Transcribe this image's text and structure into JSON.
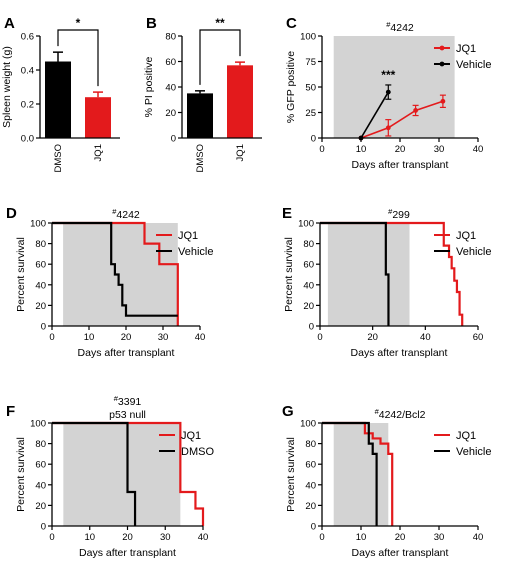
{
  "colors": {
    "jq1": "#e31a1c",
    "control": "#000000",
    "shade": "#d3d3d3"
  },
  "chart_data": [
    {
      "id": "A",
      "panel_label": "A",
      "type": "bar",
      "categories": [
        "DMSO",
        "JQ1"
      ],
      "values": [
        0.45,
        0.24
      ],
      "errors": [
        0.055,
        0.03
      ],
      "bar_colors": [
        "#000000",
        "#e31a1c"
      ],
      "ylabel": "Spleen weight (g)",
      "ylim": [
        0,
        0.6
      ],
      "yticks": [
        0.0,
        0.2,
        0.4,
        0.6
      ],
      "ytick_labels": [
        "0.0",
        "0.2",
        "0.4",
        "0.6"
      ],
      "significance": "*"
    },
    {
      "id": "B",
      "panel_label": "B",
      "type": "bar",
      "categories": [
        "DMSO",
        "JQ1"
      ],
      "values": [
        35,
        57
      ],
      "errors": [
        2,
        2.5
      ],
      "bar_colors": [
        "#000000",
        "#e31a1c"
      ],
      "ylabel": "% PI positive",
      "ylim": [
        0,
        80
      ],
      "yticks": [
        0,
        20,
        40,
        60,
        80
      ],
      "ytick_labels": [
        "0",
        "20",
        "40",
        "60",
        "80"
      ],
      "significance": "**"
    },
    {
      "id": "C",
      "panel_label": "C",
      "type": "line",
      "title_sup": "#",
      "title": "4242",
      "xlabel": "Days after transplant",
      "ylabel": "% GFP positive",
      "xlim": [
        0,
        40
      ],
      "ylim": [
        0,
        100
      ],
      "xticks": [
        0,
        10,
        20,
        30,
        40
      ],
      "yticks": [
        0,
        25,
        50,
        75,
        100
      ],
      "shade": [
        3,
        34
      ],
      "legend_position": "top-right",
      "series": [
        {
          "name": "JQ1",
          "color": "#e31a1c",
          "x": [
            10,
            17,
            24,
            31
          ],
          "y": [
            0,
            10,
            27,
            36
          ],
          "err": [
            0,
            8,
            5,
            6
          ]
        },
        {
          "name": "Vehicle",
          "color": "#000000",
          "x": [
            10,
            17
          ],
          "y": [
            0,
            45
          ],
          "err": [
            0,
            7
          ]
        }
      ],
      "annotation": "***"
    },
    {
      "id": "D",
      "panel_label": "D",
      "type": "line",
      "title_sup": "#",
      "title": "4242",
      "xlabel": "Days after transplant",
      "ylabel": "Percent survival",
      "xlim": [
        0,
        40
      ],
      "ylim": [
        0,
        100
      ],
      "xticks": [
        0,
        10,
        20,
        30,
        40
      ],
      "yticks": [
        0,
        20,
        40,
        60,
        80,
        100
      ],
      "shade": [
        3,
        34
      ],
      "legend_position": "top-right",
      "series": [
        {
          "name": "JQ1",
          "color": "#e31a1c",
          "x": [
            0,
            25,
            25,
            29,
            29,
            34,
            34
          ],
          "y": [
            100,
            100,
            80,
            80,
            60,
            60,
            0
          ]
        },
        {
          "name": "Vehicle",
          "color": "#000000",
          "x": [
            0,
            16,
            16,
            17,
            17,
            18,
            18,
            19,
            19,
            20,
            20,
            34
          ],
          "y": [
            100,
            100,
            60,
            60,
            50,
            50,
            40,
            40,
            20,
            20,
            10,
            10
          ]
        }
      ]
    },
    {
      "id": "E",
      "panel_label": "E",
      "type": "line",
      "title_sup": "#",
      "title": "299",
      "xlabel": "Days after transplant",
      "ylabel": "Percent survival",
      "xlim": [
        0,
        60
      ],
      "ylim": [
        0,
        100
      ],
      "xticks": [
        0,
        20,
        40,
        60
      ],
      "yticks": [
        0,
        20,
        40,
        60,
        80,
        100
      ],
      "shade": [
        3,
        34
      ],
      "legend_position": "top-right",
      "series": [
        {
          "name": "JQ1",
          "color": "#e31a1c",
          "x": [
            0,
            47,
            47,
            49,
            49,
            50,
            50,
            51,
            51,
            52,
            52,
            53,
            53,
            54,
            54
          ],
          "y": [
            100,
            100,
            78,
            78,
            67,
            67,
            56,
            56,
            44,
            44,
            33,
            33,
            11,
            11,
            0
          ]
        },
        {
          "name": "Vehicle",
          "color": "#000000",
          "x": [
            0,
            25,
            25,
            26,
            26
          ],
          "y": [
            100,
            100,
            50,
            50,
            0
          ]
        }
      ]
    },
    {
      "id": "F",
      "panel_label": "F",
      "type": "line",
      "title_sup": "#",
      "title": "3391",
      "subtitle": "p53 null",
      "xlabel": "Days after transplant",
      "ylabel": "Percent survival",
      "xlim": [
        0,
        40
      ],
      "ylim": [
        0,
        100
      ],
      "xticks": [
        0,
        10,
        20,
        30,
        40
      ],
      "yticks": [
        0,
        20,
        40,
        60,
        80,
        100
      ],
      "shade": [
        3,
        34
      ],
      "legend_position": "top-right",
      "series": [
        {
          "name": "JQ1",
          "color": "#e31a1c",
          "x": [
            0,
            34,
            34,
            38,
            38,
            40,
            40
          ],
          "y": [
            100,
            100,
            33,
            33,
            17,
            17,
            0
          ]
        },
        {
          "name": "DMSO",
          "color": "#000000",
          "x": [
            0,
            20,
            20,
            22,
            22
          ],
          "y": [
            100,
            100,
            33,
            33,
            0
          ]
        }
      ]
    },
    {
      "id": "G",
      "panel_label": "G",
      "type": "line",
      "title_sup": "#",
      "title": "4242/Bcl2",
      "xlabel": "Days after transplant",
      "ylabel": "Percent survival",
      "xlim": [
        0,
        40
      ],
      "ylim": [
        0,
        100
      ],
      "xticks": [
        0,
        10,
        20,
        30,
        40
      ],
      "yticks": [
        0,
        20,
        40,
        60,
        80,
        100
      ],
      "shade": [
        3,
        17
      ],
      "legend_position": "top-right",
      "series": [
        {
          "name": "JQ1",
          "color": "#e31a1c",
          "x": [
            0,
            11,
            11,
            13,
            13,
            15,
            15,
            17,
            17,
            18,
            18
          ],
          "y": [
            100,
            100,
            90,
            90,
            85,
            85,
            80,
            80,
            70,
            70,
            0
          ]
        },
        {
          "name": "Vehicle",
          "color": "#000000",
          "x": [
            0,
            12,
            12,
            13,
            13,
            14,
            14
          ],
          "y": [
            100,
            100,
            80,
            80,
            70,
            70,
            0
          ]
        }
      ]
    }
  ]
}
